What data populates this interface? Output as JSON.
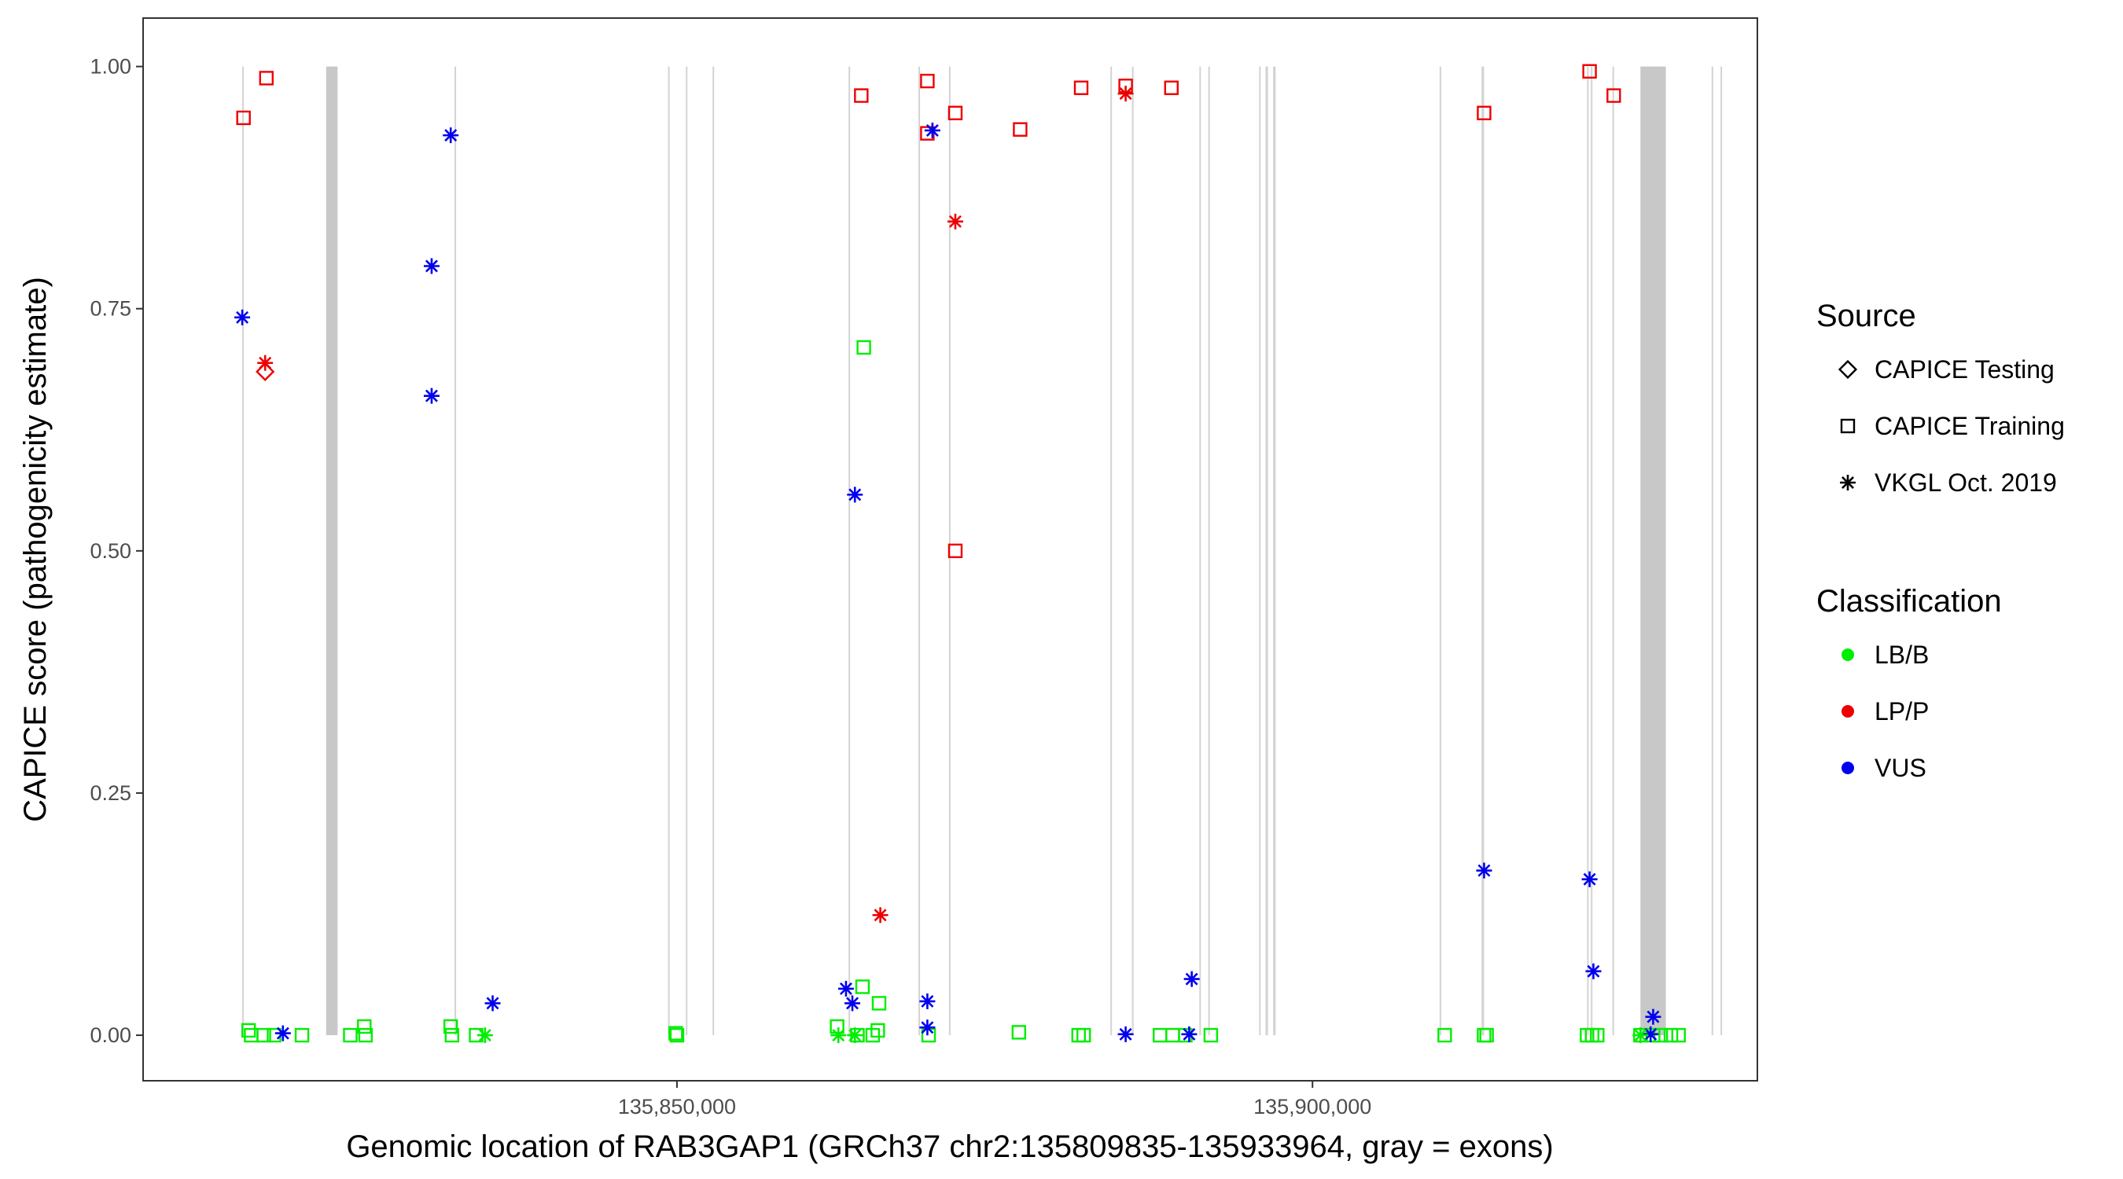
{
  "chart_data": {
    "type": "scatter",
    "title": "",
    "xlabel": "Genomic location of RAB3GAP1 (GRCh37 chr2:135809835-135933964, gray = exons)",
    "ylabel": "CAPICE score (pathogenicity estimate)",
    "xlim": [
      135808000,
      135935000
    ],
    "ylim": [
      -0.047,
      1.05
    ],
    "x_ticks": [
      135850000,
      135900000
    ],
    "x_tick_labels": [
      "135,850,000",
      "135,900,000"
    ],
    "y_ticks": [
      0,
      0.25,
      0.5,
      0.75,
      1
    ],
    "y_tick_labels": [
      "0.00",
      "0.25",
      "0.50",
      "0.75",
      "1.00"
    ],
    "grid": false,
    "exons": [
      [
        135815800,
        135815900
      ],
      [
        135822400,
        135823300
      ],
      [
        135849300,
        135849400
      ],
      [
        135850700,
        135850800
      ],
      [
        135852800,
        135852900
      ],
      [
        135863500,
        135863600
      ],
      [
        135832500,
        135832600
      ],
      [
        135869000,
        135869100
      ],
      [
        135871400,
        135871500
      ],
      [
        135884100,
        135884200
      ],
      [
        135885800,
        135885900
      ],
      [
        135891100,
        135891200
      ],
      [
        135891800,
        135891900
      ],
      [
        135895800,
        135895900
      ],
      [
        135896300,
        135896500
      ],
      [
        135896900,
        135897100
      ],
      [
        135910000,
        135910100
      ],
      [
        135913300,
        135913500
      ],
      [
        135921600,
        135921700
      ],
      [
        135921900,
        135922000
      ],
      [
        135923600,
        135923700
      ],
      [
        135925800,
        135927800
      ],
      [
        135931400,
        135931500
      ],
      [
        135932100,
        135932200
      ]
    ],
    "legends": [
      {
        "title": "Source",
        "position": "right",
        "entries": [
          {
            "label": "CAPICE Testing",
            "shape": "diamond"
          },
          {
            "label": "CAPICE Training",
            "shape": "square"
          },
          {
            "label": "VKGL Oct. 2019",
            "shape": "asterisk"
          }
        ]
      },
      {
        "title": "Classification",
        "position": "right",
        "entries": [
          {
            "label": "LB/B",
            "color": "#00ee00"
          },
          {
            "label": "LP/P",
            "color": "#ee0000"
          },
          {
            "label": "VUS",
            "color": "#0000ee"
          }
        ]
      }
    ],
    "series": [
      {
        "source": "CAPICE Testing",
        "classification": "LP/P",
        "points": [
          [
            135817600,
            0.685
          ]
        ]
      },
      {
        "source": "CAPICE Training",
        "classification": "LP/P",
        "points": [
          [
            135815900,
            0.947
          ],
          [
            135817700,
            0.988
          ],
          [
            135864500,
            0.97
          ],
          [
            135869700,
            0.985
          ],
          [
            135869700,
            0.931
          ],
          [
            135871900,
            0.952
          ],
          [
            135877000,
            0.935
          ],
          [
            135881800,
            0.978
          ],
          [
            135885300,
            0.98
          ],
          [
            135888900,
            0.978
          ],
          [
            135913500,
            0.952
          ],
          [
            135921800,
            0.995
          ],
          [
            135923700,
            0.97
          ],
          [
            135871900,
            0.5
          ]
        ]
      },
      {
        "source": "CAPICE Training",
        "classification": "LB/B",
        "points": [
          [
            135816300,
            0.005
          ],
          [
            135816500,
            0.0
          ],
          [
            135817500,
            0.0
          ],
          [
            135818300,
            0.0
          ],
          [
            135820500,
            0.0
          ],
          [
            135824300,
            0.0
          ],
          [
            135825400,
            0.009
          ],
          [
            135825500,
            0.0
          ],
          [
            135832200,
            0.009
          ],
          [
            135832300,
            0.0
          ],
          [
            135834200,
            0.0
          ],
          [
            135849900,
            0.002
          ],
          [
            135850000,
            0.0
          ],
          [
            135862600,
            0.009
          ],
          [
            135864200,
            0.0
          ],
          [
            135865400,
            0.0
          ],
          [
            135864600,
            0.05
          ],
          [
            135865900,
            0.033
          ],
          [
            135865800,
            0.005
          ],
          [
            135864700,
            0.71
          ],
          [
            135869800,
            0.0
          ],
          [
            135876900,
            0.003
          ],
          [
            135881600,
            0.0
          ],
          [
            135882000,
            0.0
          ],
          [
            135888000,
            0.0
          ],
          [
            135889000,
            0.0
          ],
          [
            135890000,
            0.0
          ],
          [
            135892000,
            0.0
          ],
          [
            135910400,
            0.0
          ],
          [
            135913500,
            0.0
          ],
          [
            135913700,
            0.0
          ],
          [
            135921600,
            0.0
          ],
          [
            135922000,
            0.0
          ],
          [
            135922400,
            0.0
          ],
          [
            135925800,
            0.0
          ],
          [
            135926800,
            0.0
          ],
          [
            135927400,
            0.0
          ],
          [
            135928200,
            0.0
          ],
          [
            135928800,
            0.0
          ]
        ]
      },
      {
        "source": "VKGL Oct. 2019",
        "classification": "VUS",
        "points": [
          [
            135815800,
            0.741
          ],
          [
            135819000,
            0.002
          ],
          [
            135830700,
            0.794
          ],
          [
            135830700,
            0.66
          ],
          [
            135832200,
            0.929
          ],
          [
            135835500,
            0.033
          ],
          [
            135864000,
            0.558
          ],
          [
            135863300,
            0.048
          ],
          [
            135863800,
            0.033
          ],
          [
            135869700,
            0.035
          ],
          [
            135869700,
            0.008
          ],
          [
            135870100,
            0.934
          ],
          [
            135885300,
            0.001
          ],
          [
            135890500,
            0.058
          ],
          [
            135890300,
            0.001
          ],
          [
            135913500,
            0.17
          ],
          [
            135921800,
            0.161
          ],
          [
            135922100,
            0.066
          ],
          [
            135926800,
            0.019
          ],
          [
            135926600,
            0.001
          ]
        ]
      },
      {
        "source": "VKGL Oct. 2019",
        "classification": "LP/P",
        "points": [
          [
            135817600,
            0.694
          ],
          [
            135866000,
            0.124
          ],
          [
            135871900,
            0.84
          ],
          [
            135885300,
            0.972
          ]
        ]
      },
      {
        "source": "VKGL Oct. 2019",
        "classification": "LB/B",
        "points": [
          [
            135834900,
            0.0
          ],
          [
            135862700,
            0.0
          ],
          [
            135864000,
            0.0
          ],
          [
            135925800,
            0.0
          ]
        ]
      }
    ]
  }
}
